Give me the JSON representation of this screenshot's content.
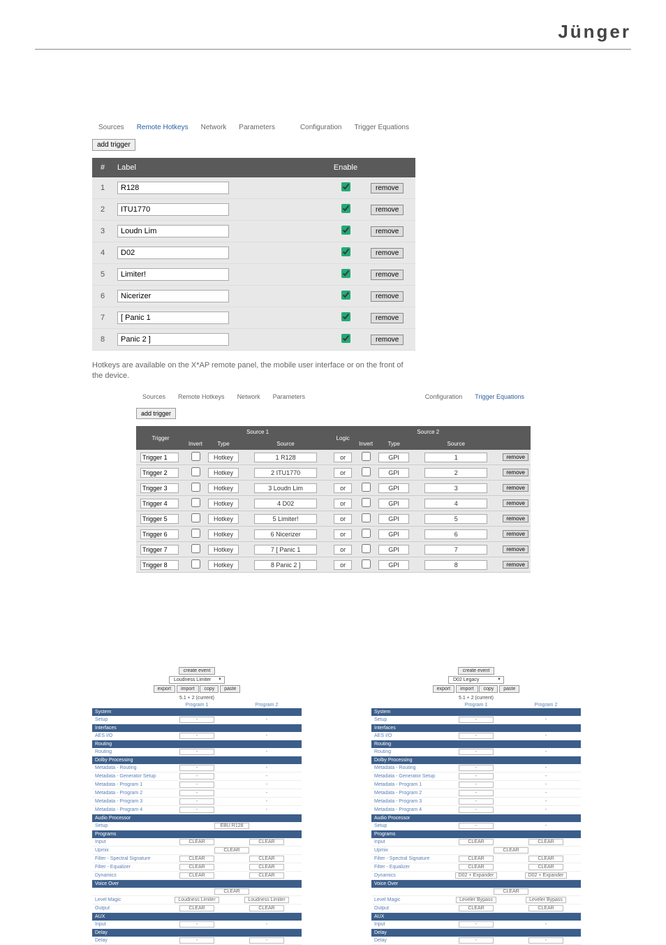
{
  "brand": "Jünger",
  "panel1": {
    "tabs_left": [
      "Sources",
      "Remote Hotkeys",
      "Network",
      "Parameters"
    ],
    "tabs_right": [
      "Configuration",
      "Trigger Equations"
    ],
    "active_tab": "Remote Hotkeys",
    "add_button": "add trigger",
    "headers": {
      "num": "#",
      "label": "Label",
      "enable": "Enable"
    },
    "rows": [
      {
        "n": "1",
        "label": "R128",
        "enabled": true
      },
      {
        "n": "2",
        "label": "ITU1770",
        "enabled": true
      },
      {
        "n": "3",
        "label": "Loudn Lim",
        "enabled": true
      },
      {
        "n": "4",
        "label": "D02",
        "enabled": true
      },
      {
        "n": "5",
        "label": "Limiter!",
        "enabled": true
      },
      {
        "n": "6",
        "label": "Nicerizer",
        "enabled": true
      },
      {
        "n": "7",
        "label": "[ Panic 1",
        "enabled": true
      },
      {
        "n": "8",
        "label": "Panic 2 ]",
        "enabled": true
      }
    ],
    "remove_label": "remove",
    "note": "Hotkeys are available on the X*AP remote panel, the mobile user interface or on the front of the device."
  },
  "panel2": {
    "tabs_left": [
      "Sources",
      "Remote Hotkeys",
      "Network",
      "Parameters"
    ],
    "tabs_right": [
      "Configuration",
      "Trigger Equations"
    ],
    "active_tab": "Trigger Equations",
    "add_button": "add trigger",
    "headers": {
      "trigger": "Trigger",
      "invert1": "Invert",
      "type1": "Type",
      "src1": "Source",
      "src1grp": "Source 1",
      "logic": "Logic",
      "invert2": "Invert",
      "type2": "Type",
      "src2": "Source",
      "src2grp": "Source 2"
    },
    "rows": [
      {
        "t": "Trigger 1",
        "inv1": false,
        "ty1": "Hotkey",
        "s1": "1  R128",
        "lg": "or",
        "inv2": false,
        "ty2": "GPI",
        "s2": "1"
      },
      {
        "t": "Trigger 2",
        "inv1": false,
        "ty1": "Hotkey",
        "s1": "2  ITU1770",
        "lg": "or",
        "inv2": false,
        "ty2": "GPI",
        "s2": "2"
      },
      {
        "t": "Trigger 3",
        "inv1": false,
        "ty1": "Hotkey",
        "s1": "3  Loudn Lim",
        "lg": "or",
        "inv2": false,
        "ty2": "GPI",
        "s2": "3"
      },
      {
        "t": "Trigger 4",
        "inv1": false,
        "ty1": "Hotkey",
        "s1": "4  D02",
        "lg": "or",
        "inv2": false,
        "ty2": "GPI",
        "s2": "4"
      },
      {
        "t": "Trigger 5",
        "inv1": false,
        "ty1": "Hotkey",
        "s1": "5  Limiter!",
        "lg": "or",
        "inv2": false,
        "ty2": "GPI",
        "s2": "5"
      },
      {
        "t": "Trigger 6",
        "inv1": false,
        "ty1": "Hotkey",
        "s1": "6  Nicerizer",
        "lg": "or",
        "inv2": false,
        "ty2": "GPI",
        "s2": "6"
      },
      {
        "t": "Trigger 7",
        "inv1": false,
        "ty1": "Hotkey",
        "s1": "7  [ Panic 1",
        "lg": "or",
        "inv2": false,
        "ty2": "GPI",
        "s2": "7"
      },
      {
        "t": "Trigger 8",
        "inv1": false,
        "ty1": "Hotkey",
        "s1": "8  Panic 2 ]",
        "lg": "or",
        "inv2": false,
        "ty2": "GPI",
        "s2": "8"
      }
    ],
    "remove_label": "remove"
  },
  "events_common": {
    "create": "create event",
    "btns": [
      "export",
      "import",
      "copy",
      "paste"
    ],
    "sub": "5.1 + 2 (current)",
    "prog1": "Program 1",
    "prog2": "Program 2",
    "cats": {
      "system": "System",
      "setup": "Setup",
      "interfaces": "Interfaces",
      "aesio": "AES I/O",
      "routing": "Routing",
      "routing2": "Routing",
      "dolby": "Dolby Processing",
      "mdr": "Metadata - Routing",
      "mdgs": "Metadata - Generator Setup",
      "mdp1": "Metadata - Program 1",
      "mdp2": "Metadata - Program 2",
      "mdp3": "Metadata - Program 3",
      "mdp4": "Metadata - Program 4",
      "audio": "Audio Processor",
      "setup2": "Setup",
      "programs": "Programs",
      "input": "Input",
      "upmix": "Upmix",
      "fss": "Filter - Spectral Signature",
      "feq": "Filter - Equalizer",
      "dyn": "Dynamics",
      "vo": "Voice Over",
      "lm": "Level Magic",
      "output": "Output",
      "aux": "AUX",
      "input2": "Input",
      "delay": "Delay",
      "delay2": "Delay"
    }
  },
  "panel3": {
    "dd": "Loudness Limiter",
    "setup_val": "EBU R128",
    "rows": {
      "input": [
        "CLEAR",
        "CLEAR"
      ],
      "upmix_span": "CLEAR",
      "fss": [
        "CLEAR",
        "CLEAR"
      ],
      "feq": [
        "CLEAR",
        "CLEAR"
      ],
      "dyn": [
        "CLEAR",
        "CLEAR"
      ],
      "vo_span": "CLEAR",
      "lm": [
        "Loudness Limiter",
        "Loudness Limiter"
      ],
      "output": [
        "CLEAR",
        "CLEAR"
      ]
    }
  },
  "panel4": {
    "dd": "D02 Legacy",
    "rows": {
      "input": [
        "CLEAR",
        "CLEAR"
      ],
      "upmix_span": "CLEAR",
      "fss": [
        "CLEAR",
        "CLEAR"
      ],
      "feq": [
        "CLEAR",
        "CLEAR"
      ],
      "dyn": [
        "D02 + Expander",
        "D02 + Expander"
      ],
      "vo_span": "CLEAR",
      "lm": [
        "Leveler Bypass",
        "Leveler Bypass"
      ],
      "output": [
        "CLEAR",
        "CLEAR"
      ]
    }
  }
}
